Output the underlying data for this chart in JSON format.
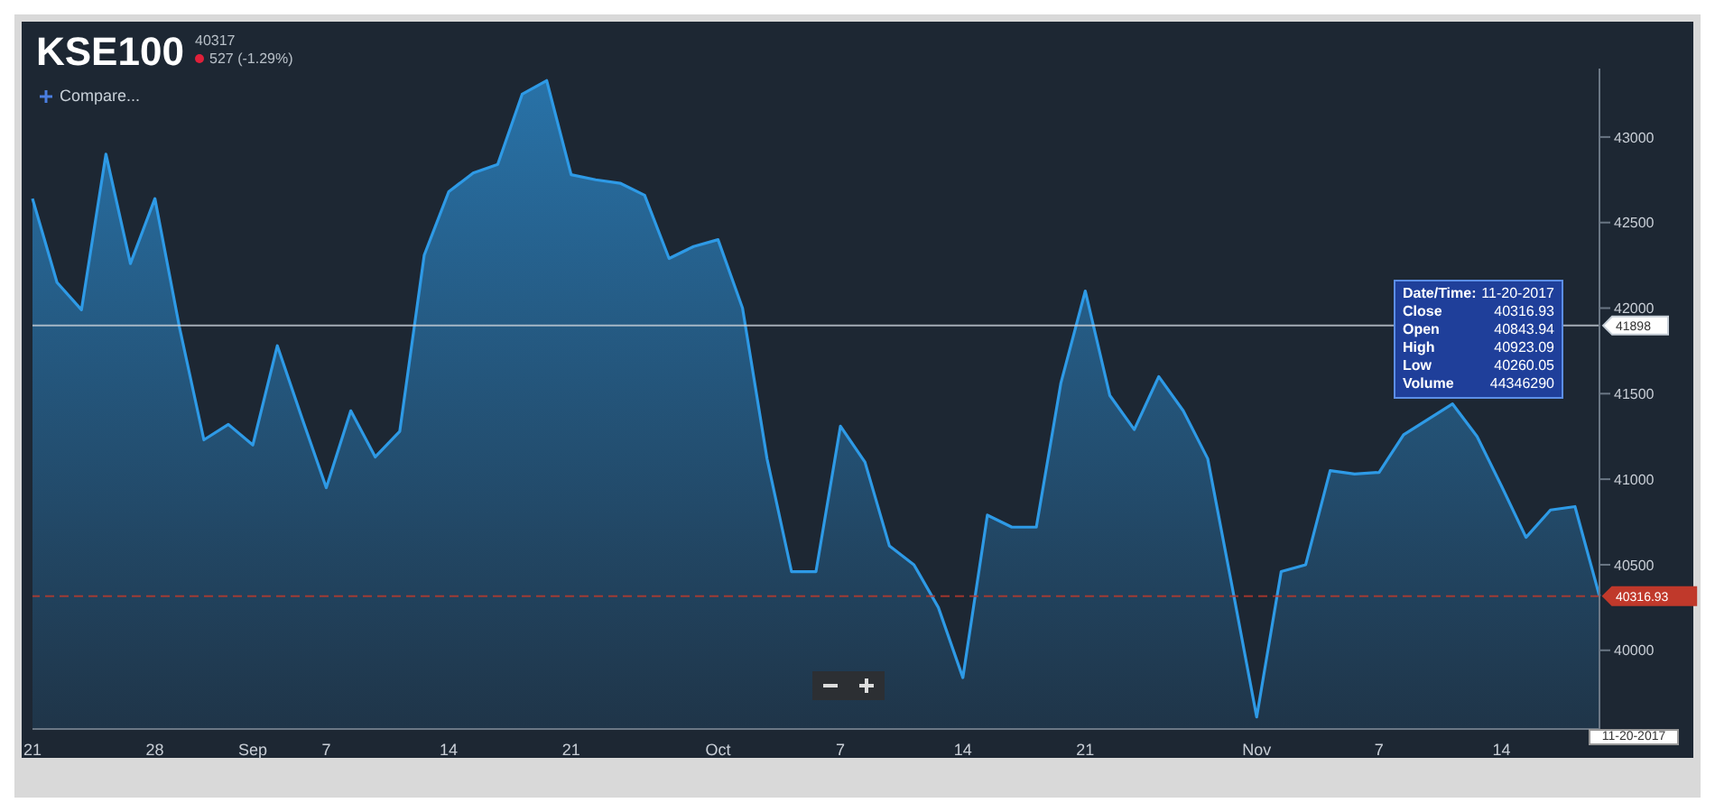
{
  "chart_data": {
    "type": "area",
    "title": "KSE100",
    "categories": [
      "21",
      null,
      null,
      null,
      null,
      "28",
      null,
      null,
      null,
      "Sep",
      null,
      null,
      "7",
      null,
      null,
      null,
      null,
      "14",
      null,
      null,
      null,
      null,
      "21",
      null,
      null,
      null,
      null,
      null,
      "Oct",
      null,
      null,
      null,
      null,
      "7",
      null,
      null,
      null,
      null,
      "14",
      null,
      null,
      null,
      null,
      "21",
      null,
      null,
      null,
      null,
      null,
      null,
      "Nov",
      null,
      null,
      null,
      null,
      "7",
      null,
      null,
      null,
      null,
      "14",
      null,
      null,
      null,
      null
    ],
    "series": [
      {
        "color": "#2e9ae6",
        "values": [
          42640,
          42150,
          41990,
          42900,
          42260,
          42640,
          41890,
          41230,
          41320,
          41200,
          41780,
          41360,
          40950,
          41400,
          41130,
          41280,
          42310,
          42680,
          42790,
          42840,
          43250,
          43330,
          42780,
          42750,
          42730,
          42660,
          42290,
          42360,
          42400,
          42000,
          41120,
          40460,
          40460,
          41310,
          41100,
          40610,
          40500,
          40250,
          39840,
          40790,
          40720,
          40720,
          41560,
          42100,
          41490,
          41290,
          41600,
          41400,
          41120,
          40370,
          39610,
          40460,
          40500,
          41050,
          41030,
          41040,
          41260,
          null,
          41440,
          41250,
          40960,
          40660,
          40820,
          40840,
          40316.93
        ]
      }
    ],
    "ylim": [
      39540,
      43400
    ],
    "yticks": [
      40000,
      40500,
      41000,
      41500,
      42000,
      42500,
      43000
    ],
    "ref_lines": [
      {
        "axis": "y",
        "value": 41898,
        "label": "41898",
        "color": "#c8d0d8",
        "line_style": "solid"
      },
      {
        "axis": "y",
        "value": 40316.93,
        "label": "40316.93",
        "color": "#c0392b",
        "line_style": "dashed"
      }
    ],
    "annotations": [
      "40317",
      "527 (-1.29%)",
      "Compare...",
      "Date/Time: 11-20-2017",
      "Close 40316.93",
      "Open 40843.94",
      "High 40923.09",
      "Low 40260.05",
      "Volume 44346290",
      "11-20-2017"
    ],
    "grid": false,
    "legend": false,
    "marker": "none",
    "line_style": "solid"
  }
}
